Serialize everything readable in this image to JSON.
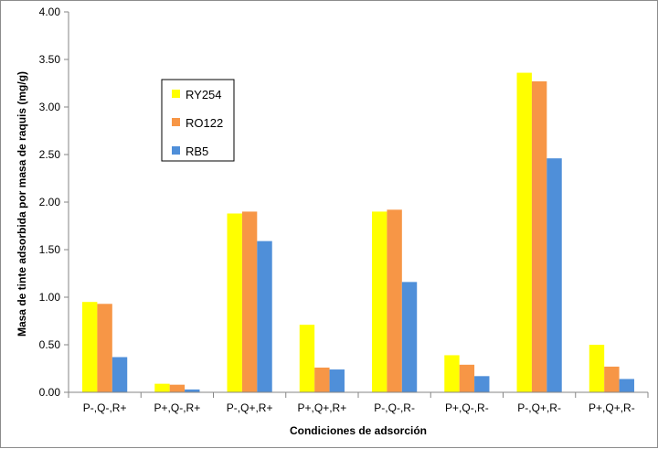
{
  "chart_data": {
    "type": "bar",
    "title": "",
    "xlabel": "Condiciones de adsorción",
    "ylabel": "Masa de tinte adsorbida por masa de raquis (mg/g)",
    "ylim": [
      0,
      4
    ],
    "yticks": [
      "0.00",
      "0.50",
      "1.00",
      "1.50",
      "2.00",
      "2.50",
      "3.00",
      "3.50",
      "4.00"
    ],
    "grid": false,
    "legend_position": "upper-left inside",
    "categories": [
      "P-,Q-,R+",
      "P+,Q-,R+",
      "P-,Q+,R+",
      "P+,Q+,R+",
      "P-,Q-,R-",
      "P+,Q-,R-",
      "P-,Q+,R-",
      "P+,Q+,R-"
    ],
    "series": [
      {
        "name": "RY254",
        "color": "#ffff00",
        "values": [
          0.95,
          0.09,
          1.88,
          0.71,
          1.9,
          0.39,
          3.36,
          0.5
        ]
      },
      {
        "name": "RO122",
        "color": "#f79646",
        "values": [
          0.93,
          0.08,
          1.9,
          0.26,
          1.92,
          0.29,
          3.27,
          0.27
        ]
      },
      {
        "name": "RB5",
        "color": "#4f8fd9",
        "values": [
          0.37,
          0.03,
          1.59,
          0.24,
          1.16,
          0.17,
          2.46,
          0.14
        ]
      }
    ]
  }
}
